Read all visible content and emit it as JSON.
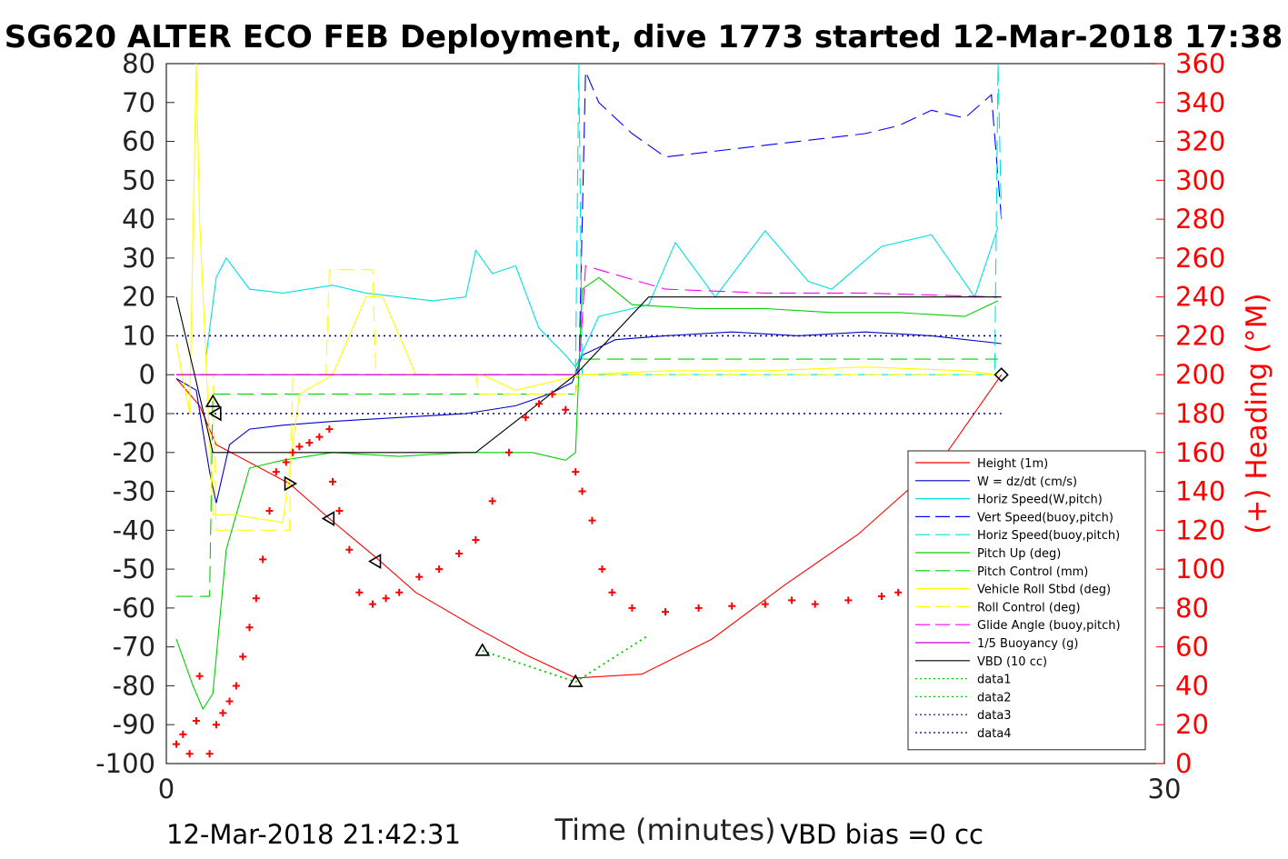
{
  "chart_data": {
    "type": "line",
    "title": "SG620 ALTER ECO FEB Deployment, dive 1773 started 12-Mar-2018 17:38",
    "xlabel": "Time (minutes)",
    "ylabel": "",
    "y2label": "(+) Heading (°M)",
    "xlim": [
      0,
      30
    ],
    "ylim": [
      -100,
      80
    ],
    "y2lim": [
      0,
      360
    ],
    "x_ticks": [
      "0",
      "30"
    ],
    "y_ticks": [
      "80",
      "70",
      "60",
      "50",
      "40",
      "30",
      "20",
      "10",
      "0",
      "-10",
      "-20",
      "-30",
      "-40",
      "-50",
      "-60",
      "-70",
      "-80",
      "-90",
      "-100"
    ],
    "y2_ticks": [
      "360",
      "340",
      "320",
      "300",
      "280",
      "260",
      "240",
      "220",
      "200",
      "180",
      "160",
      "140",
      "120",
      "100",
      "80",
      "60",
      "40",
      "20",
      "0"
    ],
    "footer_left": "12-Mar-2018 21:42:31",
    "footer_right": "VBD bias =0 cc",
    "legend_position": "lower-right",
    "series": [
      {
        "name": "Height (1m)",
        "color": "#ff0000",
        "style": "solid",
        "x": [
          0.3,
          1.0,
          1.5,
          3.7,
          4.9,
          6.3,
          7.5,
          9.3,
          10.8,
          12.3,
          14.3,
          16.4,
          18.6,
          20.8,
          23.3,
          25.1
        ],
        "y": [
          -1,
          -8,
          -18,
          -28,
          -37,
          -47,
          -56,
          -65,
          -72,
          -78,
          -77,
          -68,
          -54,
          -41,
          -22,
          0
        ]
      },
      {
        "name": "W = dz/dt (cm/s)",
        "color": "#0000cc",
        "style": "solid",
        "x": [
          0.3,
          0.9,
          1.3,
          1.5,
          1.9,
          2.5,
          3.5,
          5,
          7,
          9,
          10.5,
          11.5,
          12.2,
          12.5,
          13.5,
          15,
          17,
          19,
          21,
          23,
          25.1
        ],
        "y": [
          -1,
          -4,
          -25,
          -33,
          -18,
          -14,
          -13,
          -12,
          -11,
          -10,
          -8,
          -5,
          -2,
          5,
          9,
          10,
          11,
          10,
          11,
          10,
          8
        ]
      },
      {
        "name": "Horiz Speed(W,pitch)",
        "color": "#00e0e0",
        "style": "solid",
        "x": [
          1.2,
          1.5,
          1.8,
          2.5,
          3.5,
          5,
          6,
          7,
          8,
          9,
          9.3,
          9.8,
          10.5,
          11.2,
          12,
          12.3,
          13,
          14.5,
          15.3,
          16.5,
          18,
          19.3,
          20,
          21.5,
          23,
          24.3,
          25
        ],
        "y": [
          5,
          25,
          30,
          22,
          21,
          23,
          21,
          20,
          19,
          20,
          32,
          26,
          28,
          12,
          5,
          2,
          15,
          18,
          34,
          20,
          37,
          24,
          22,
          33,
          36,
          20,
          38
        ]
      },
      {
        "name": "Vert Speed(buoy,pitch)",
        "color": "#0000ff",
        "style": "dashed",
        "x": [
          12.4,
          12.6,
          13,
          14,
          15,
          16,
          17,
          18,
          19,
          20,
          21,
          22,
          23,
          24,
          24.8,
          25.1
        ],
        "y": [
          0,
          78,
          70,
          62,
          56,
          57,
          58,
          59,
          60,
          61,
          62,
          64,
          68,
          66,
          72,
          40
        ]
      },
      {
        "name": "Horiz Speed(buoy,pitch)",
        "color": "#00e0e0",
        "style": "dashed",
        "x": [
          12.3,
          12.4,
          12.5,
          24.9,
          25.0,
          25.1
        ],
        "y": [
          0,
          80,
          0,
          0,
          80,
          40
        ]
      },
      {
        "name": "Pitch Up (deg)",
        "color": "#00d000",
        "style": "solid",
        "x": [
          0.3,
          0.8,
          1.1,
          1.4,
          1.8,
          2.5,
          3.5,
          5,
          7,
          9,
          11,
          12,
          12.3,
          12.5,
          13,
          14,
          16,
          18,
          20,
          22,
          24,
          25
        ],
        "y": [
          -68,
          -80,
          -86,
          -82,
          -45,
          -24,
          -22,
          -20,
          -21,
          -20,
          -20,
          -22,
          -20,
          22,
          25,
          18,
          17,
          17,
          16,
          16,
          15,
          19
        ]
      },
      {
        "name": "Pitch Control (mm)",
        "color": "#00d000",
        "style": "dashed",
        "x": [
          0.3,
          1.3,
          1.4,
          1.5,
          12.3,
          12.4,
          25
        ],
        "y": [
          -57,
          -57,
          -5,
          -5,
          -5,
          4,
          4
        ]
      },
      {
        "name": "Vehicle Roll Stbd (deg)",
        "color": "#ffff00",
        "style": "solid",
        "x": [
          0.3,
          0.7,
          0.9,
          1.0,
          1.4,
          2.0,
          3.5,
          4.0,
          5.0,
          6.0,
          6.5,
          7.5,
          9.5,
          10.5,
          12.5,
          15,
          18,
          21,
          24,
          25
        ],
        "y": [
          8,
          -10,
          80,
          40,
          -36,
          -36,
          -38,
          -5,
          0,
          20,
          20,
          0,
          0,
          -4,
          0,
          1,
          1,
          2,
          1,
          0
        ]
      },
      {
        "name": "Roll Control (deg)",
        "color": "#ffff00",
        "style": "dashed",
        "x": [
          0.3,
          1.4,
          1.5,
          3.7,
          3.8,
          4.8,
          4.9,
          6.2,
          6.3,
          9.3,
          9.4,
          12.3,
          12.4,
          25
        ],
        "y": [
          0,
          0,
          -40,
          -40,
          0,
          0,
          27,
          27,
          0,
          0,
          -5,
          -5,
          0,
          0
        ]
      },
      {
        "name": "Glide Angle (buoy,pitch)",
        "color": "#ff00ff",
        "style": "dashed",
        "x": [
          0.3,
          12.4,
          12.6,
          13,
          15,
          18,
          21,
          25
        ],
        "y": [
          0,
          0,
          28,
          27,
          22,
          21,
          21,
          20
        ]
      },
      {
        "name": "1/5 Buoyancy (g)",
        "color": "#cc00cc",
        "style": "solid",
        "x": [
          0.3,
          12.3
        ],
        "y": [
          0,
          0
        ]
      },
      {
        "name": "VBD (10 cc)",
        "color": "#000000",
        "style": "solid",
        "x": [
          0.3,
          1.4,
          9.3,
          12.3,
          14.5,
          25.1
        ],
        "y": [
          20,
          -20,
          -20,
          0,
          20,
          20
        ]
      },
      {
        "name": "data1",
        "color": "#00d000",
        "style": "dotted",
        "x": [
          9.5,
          12.3,
          14.5
        ],
        "y": [
          -71,
          -79,
          -67
        ]
      },
      {
        "name": "data2",
        "color": "#00d000",
        "style": "dotted",
        "x": [
          9.5,
          12.3,
          14.5
        ],
        "y": [
          -71,
          -79,
          -67
        ]
      },
      {
        "name": "data3",
        "color": "#000080",
        "style": "dotted",
        "x": [
          0.3,
          25.1
        ],
        "y": [
          10,
          10
        ]
      },
      {
        "name": "data4",
        "color": "#000080",
        "style": "dotted",
        "x": [
          0.3,
          25.1
        ],
        "y": [
          -10,
          -10
        ]
      }
    ],
    "heading_series": {
      "color": "#ff0000",
      "marker": "+",
      "axis": "right",
      "x": [
        0.3,
        0.5,
        0.7,
        0.9,
        1.0,
        1.3,
        1.5,
        1.7,
        1.9,
        2.1,
        2.3,
        2.5,
        2.7,
        2.9,
        3.1,
        3.3,
        3.6,
        3.8,
        4.0,
        4.3,
        4.6,
        4.9,
        5.0,
        5.2,
        5.5,
        5.8,
        6.2,
        6.6,
        7.0,
        7.6,
        8.2,
        8.8,
        9.3,
        9.8,
        10.3,
        10.8,
        11.2,
        11.6,
        12.0,
        12.3,
        12.5,
        12.8,
        13.1,
        13.4,
        14.0,
        15.0,
        16.0,
        17.0,
        18.0,
        18.8,
        19.5,
        20.5,
        21.5,
        22.0,
        22.5,
        23.0,
        23.5,
        24.0,
        24.5,
        25.0
      ],
      "y": [
        10,
        15,
        5,
        22,
        45,
        5,
        20,
        26,
        32,
        40,
        55,
        70,
        85,
        105,
        130,
        150,
        155,
        160,
        163,
        165,
        168,
        172,
        145,
        130,
        110,
        88,
        82,
        85,
        88,
        96,
        100,
        108,
        115,
        135,
        160,
        178,
        185,
        190,
        182,
        150,
        140,
        125,
        100,
        88,
        80,
        78,
        80,
        81,
        82,
        84,
        82,
        84,
        86,
        88,
        90,
        95,
        97,
        99,
        100,
        100
      ]
    },
    "markers": [
      {
        "shape": "triangle-up",
        "x": 1.4,
        "y": -7
      },
      {
        "shape": "triangle-left",
        "x": 1.5,
        "y": -10
      },
      {
        "shape": "triangle-right",
        "x": 3.7,
        "y": -28
      },
      {
        "shape": "triangle-left",
        "x": 4.9,
        "y": -37
      },
      {
        "shape": "triangle-left",
        "x": 6.3,
        "y": -48
      },
      {
        "shape": "triangle-up",
        "x": 9.5,
        "y": -71
      },
      {
        "shape": "triangle-up",
        "x": 12.3,
        "y": -79
      },
      {
        "shape": "diamond",
        "x": 25.1,
        "y": 0
      }
    ]
  }
}
